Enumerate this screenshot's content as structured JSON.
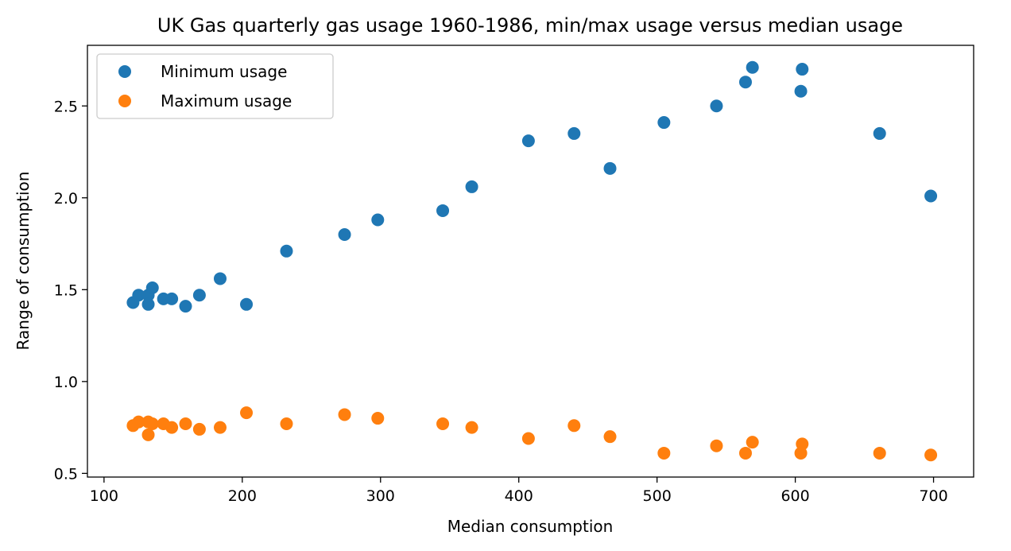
{
  "chart_data": {
    "type": "scatter",
    "title": "UK Gas quarterly gas usage 1960-1986, min/max usage versus median usage",
    "xlabel": "Median consumption",
    "ylabel": "Range of consumption",
    "xlim": [
      88,
      729
    ],
    "ylim": [
      0.48,
      2.83
    ],
    "xticks": [
      100,
      200,
      300,
      400,
      500,
      600,
      700
    ],
    "yticks": [
      0.5,
      1.0,
      1.5,
      2.0,
      2.5
    ],
    "ytick_labels": [
      "0.5",
      "1.0",
      "1.5",
      "2.0",
      "2.5"
    ],
    "grid": false,
    "legend_position": "top-left",
    "series": [
      {
        "name": "Minimum usage",
        "color": "#1f77b4",
        "points": [
          [
            121,
            1.43
          ],
          [
            125,
            1.47
          ],
          [
            132,
            1.47
          ],
          [
            135,
            1.51
          ],
          [
            132,
            1.42
          ],
          [
            143,
            1.45
          ],
          [
            149,
            1.45
          ],
          [
            159,
            1.41
          ],
          [
            169,
            1.47
          ],
          [
            184,
            1.56
          ],
          [
            203,
            1.42
          ],
          [
            232,
            1.71
          ],
          [
            274,
            1.8
          ],
          [
            298,
            1.88
          ],
          [
            345,
            1.93
          ],
          [
            366,
            2.06
          ],
          [
            407,
            2.31
          ],
          [
            440,
            2.35
          ],
          [
            466,
            2.16
          ],
          [
            505,
            2.41
          ],
          [
            543,
            2.5
          ],
          [
            564,
            2.63
          ],
          [
            569,
            2.71
          ],
          [
            604,
            2.58
          ],
          [
            605,
            2.7
          ],
          [
            661,
            2.35
          ],
          [
            698,
            2.01
          ]
        ]
      },
      {
        "name": "Maximum usage",
        "color": "#ff7f0e",
        "points": [
          [
            121,
            0.76
          ],
          [
            125,
            0.78
          ],
          [
            132,
            0.78
          ],
          [
            135,
            0.77
          ],
          [
            132,
            0.71
          ],
          [
            143,
            0.77
          ],
          [
            149,
            0.75
          ],
          [
            159,
            0.77
          ],
          [
            169,
            0.74
          ],
          [
            184,
            0.75
          ],
          [
            203,
            0.83
          ],
          [
            232,
            0.77
          ],
          [
            274,
            0.82
          ],
          [
            298,
            0.8
          ],
          [
            345,
            0.77
          ],
          [
            366,
            0.75
          ],
          [
            407,
            0.69
          ],
          [
            440,
            0.76
          ],
          [
            466,
            0.7
          ],
          [
            505,
            0.61
          ],
          [
            543,
            0.65
          ],
          [
            564,
            0.61
          ],
          [
            569,
            0.67
          ],
          [
            604,
            0.61
          ],
          [
            605,
            0.66
          ],
          [
            661,
            0.61
          ],
          [
            698,
            0.6
          ]
        ]
      }
    ]
  }
}
